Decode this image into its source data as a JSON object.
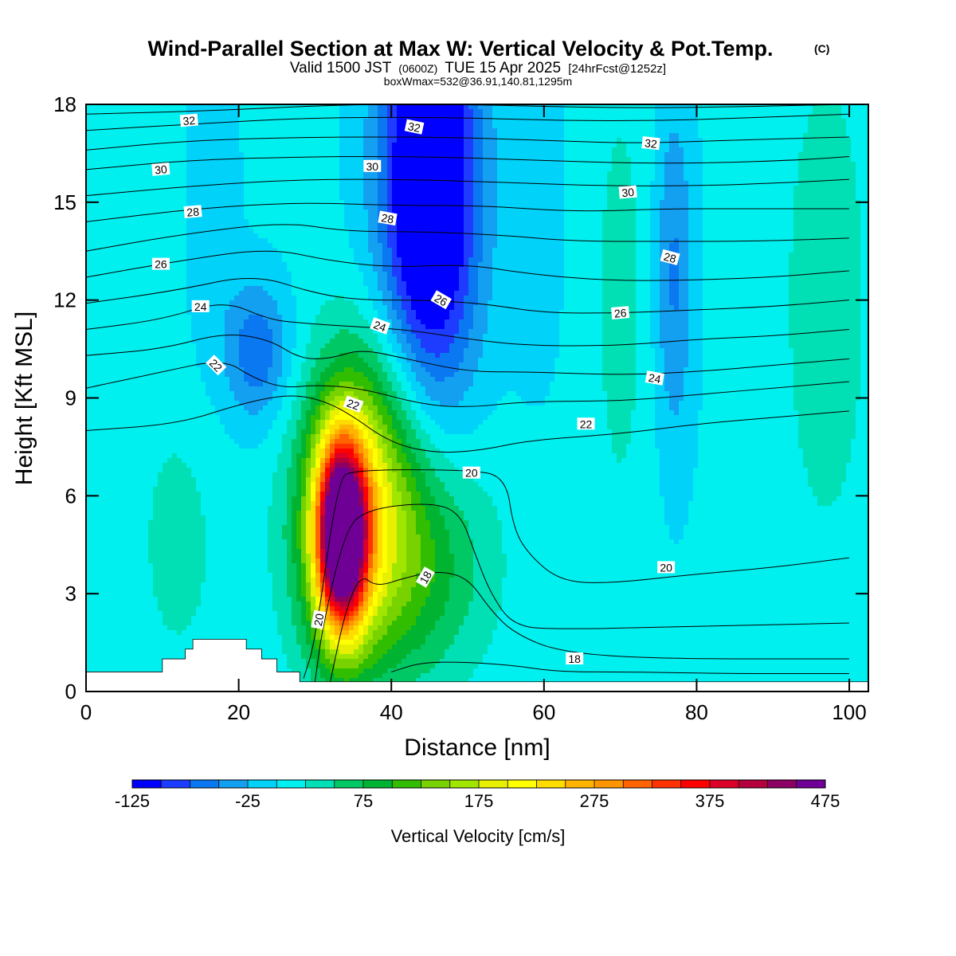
{
  "title": {
    "main": "Wind-Parallel Section at Max W: Vertical Velocity & Pot.Temp.",
    "main_suffix": "(C)",
    "valid_prefix": "Valid 1500 JST",
    "valid_small": "(0600Z)",
    "valid_date": "TUE 15 Apr 2025",
    "valid_fcst": "[24hrFcst@1252z]",
    "line3": "boxWmax=532@36.91,140.81,1295m"
  },
  "chart_data": {
    "type": "heatmap",
    "xlabel": "Distance [nm]",
    "ylabel": "Height [Kft MSL]",
    "xlim": [
      0,
      102.5
    ],
    "ylim": [
      0,
      18
    ],
    "x_ticks": [
      0,
      20,
      40,
      60,
      80,
      100
    ],
    "y_ticks": [
      0,
      3,
      6,
      9,
      12,
      15,
      18
    ],
    "grid": false,
    "colorbar": {
      "title": "Vertical Velocity [cm/s]",
      "min": -125,
      "max": 475,
      "step": 25,
      "tick_labels": [
        -125,
        -25,
        75,
        175,
        275,
        375,
        475
      ],
      "colors": [
        "#0000ff",
        "#1e3cff",
        "#0a78f0",
        "#14a0f0",
        "#00d2fa",
        "#00f0f0",
        "#00e0b4",
        "#00c864",
        "#00b432",
        "#32be00",
        "#78d200",
        "#a0e600",
        "#e6f000",
        "#ffff00",
        "#ffdc00",
        "#ffb400",
        "#ff9600",
        "#ff6400",
        "#ff3200",
        "#ff0000",
        "#dc0028",
        "#b4003c",
        "#8c0064",
        "#6e0096"
      ]
    },
    "terrain_kft": [
      [
        0,
        0.6
      ],
      [
        10,
        0.6
      ],
      [
        10,
        1.0
      ],
      [
        13,
        1.0
      ],
      [
        13,
        1.3
      ],
      [
        14,
        1.3
      ],
      [
        14,
        1.6
      ],
      [
        21,
        1.6
      ],
      [
        21,
        1.3
      ],
      [
        23,
        1.3
      ],
      [
        23,
        1.0
      ],
      [
        25,
        1.0
      ],
      [
        25,
        0.6
      ],
      [
        28,
        0.6
      ],
      [
        28,
        0.3
      ],
      [
        102.5,
        0.3
      ]
    ],
    "w_features": [
      {
        "x": 33.5,
        "z": 4.8,
        "sx": 2.2,
        "sz": 1.9,
        "w": 470
      },
      {
        "x": 34.0,
        "z": 5.5,
        "sx": 4.5,
        "sz": 3.2,
        "w": 140
      },
      {
        "x": 41.0,
        "z": 4.0,
        "sx": 7.5,
        "sz": 2.6,
        "w": 115
      },
      {
        "x": 39.0,
        "z": 8.0,
        "sx": 5.0,
        "sz": 2.4,
        "w": 60
      },
      {
        "x": 45.0,
        "z": 15.5,
        "sx": 4.5,
        "sz": 4.8,
        "w": -185
      },
      {
        "x": 22.5,
        "z": 10.4,
        "sx": 3.0,
        "sz": 1.5,
        "w": -75
      },
      {
        "x": 77.0,
        "z": 12.8,
        "sx": 1.8,
        "sz": 3.8,
        "w": -60
      },
      {
        "x": 16.0,
        "z": 15.0,
        "sx": 2.5,
        "sz": 3.5,
        "w": -25
      },
      {
        "x": 59.0,
        "z": 15.0,
        "sx": 2.5,
        "sz": 4.0,
        "w": -20
      },
      {
        "x": 12.0,
        "z": 4.5,
        "sx": 4.0,
        "sz": 3.0,
        "w": 30
      },
      {
        "x": 97.0,
        "z": 12.0,
        "sx": 4.5,
        "sz": 6.0,
        "w": 35
      },
      {
        "x": 70.0,
        "z": 12.0,
        "sx": 3.0,
        "sz": 6.0,
        "w": 28
      },
      {
        "x": 8.0,
        "z": 15.5,
        "sx": 3.5,
        "sz": 3.5,
        "w": 20
      }
    ],
    "w_background": 5,
    "theta_contours": [
      {
        "level": 18,
        "points": [
          [
            40,
            0.6
          ],
          [
            44,
            0.9
          ],
          [
            50,
            0.9
          ],
          [
            56,
            0.8
          ],
          [
            62,
            0.6
          ],
          [
            72,
            0.6
          ],
          [
            84,
            0.55
          ],
          [
            100,
            0.55
          ]
        ]
      },
      {
        "level": 18,
        "points": [
          [
            32,
            0.3
          ],
          [
            34,
            2.5
          ],
          [
            36,
            3.6
          ],
          [
            38,
            3.2
          ],
          [
            42,
            3.5
          ],
          [
            46,
            3.7
          ],
          [
            50,
            3.5
          ],
          [
            53,
            2.5
          ],
          [
            56,
            1.8
          ],
          [
            62,
            1.2
          ],
          [
            75,
            1.0
          ],
          [
            100,
            1.0
          ]
        ]
      },
      {
        "level": 20,
        "points": [
          [
            30,
            0.3
          ],
          [
            31,
            2.0
          ],
          [
            34,
            5.0
          ],
          [
            37,
            5.6
          ],
          [
            45,
            5.8
          ],
          [
            49,
            5.5
          ],
          [
            51,
            4.2
          ],
          [
            53,
            3.0
          ],
          [
            56,
            2.0
          ],
          [
            62,
            1.9
          ],
          [
            80,
            2.0
          ],
          [
            100,
            2.1
          ]
        ]
      },
      {
        "level": 20,
        "points": [
          [
            28.5,
            0.4
          ],
          [
            30,
            1.5
          ],
          [
            33,
            6.5
          ],
          [
            35,
            6.8
          ],
          [
            50,
            6.8
          ],
          [
            55,
            6.6
          ],
          [
            56,
            5.0
          ],
          [
            58,
            4.2
          ],
          [
            62,
            3.4
          ],
          [
            68,
            3.3
          ],
          [
            80,
            3.6
          ],
          [
            90,
            3.8
          ],
          [
            100,
            4.1
          ]
        ]
      },
      {
        "level": 22,
        "points": [
          [
            0,
            8.0
          ],
          [
            12,
            8.2
          ],
          [
            20,
            8.8
          ],
          [
            26,
            9.1
          ],
          [
            30,
            9.0
          ],
          [
            34,
            8.6
          ],
          [
            40,
            7.6
          ],
          [
            46,
            7.3
          ],
          [
            52,
            7.4
          ],
          [
            58,
            7.7
          ],
          [
            70,
            7.9
          ],
          [
            80,
            8.2
          ],
          [
            90,
            8.4
          ],
          [
            100,
            8.6
          ]
        ]
      },
      {
        "level": 22,
        "points": [
          [
            0,
            9.3
          ],
          [
            10,
            9.8
          ],
          [
            18,
            10.2
          ],
          [
            22,
            9.6
          ],
          [
            26,
            9.3
          ],
          [
            30,
            9.4
          ],
          [
            36,
            9.3
          ],
          [
            44,
            8.8
          ],
          [
            50,
            8.7
          ],
          [
            58,
            8.9
          ],
          [
            70,
            8.9
          ],
          [
            80,
            9.1
          ],
          [
            90,
            9.3
          ],
          [
            100,
            9.5
          ]
        ]
      },
      {
        "level": 22,
        "points": [
          [
            0,
            10.3
          ],
          [
            10,
            10.5
          ],
          [
            18,
            11.0
          ],
          [
            24,
            10.8
          ],
          [
            28,
            10.2
          ],
          [
            32,
            10.2
          ],
          [
            36,
            10.5
          ],
          [
            42,
            10.2
          ],
          [
            50,
            9.8
          ],
          [
            58,
            9.8
          ],
          [
            70,
            9.7
          ],
          [
            80,
            9.8
          ],
          [
            90,
            10.0
          ],
          [
            100,
            10.2
          ]
        ]
      },
      {
        "level": 24,
        "points": [
          [
            0,
            11.1
          ],
          [
            10,
            11.4
          ],
          [
            18,
            12.0
          ],
          [
            24,
            11.4
          ],
          [
            28,
            11.3
          ],
          [
            34,
            11.2
          ],
          [
            42,
            11.1
          ],
          [
            50,
            10.8
          ],
          [
            58,
            10.6
          ],
          [
            70,
            10.6
          ],
          [
            80,
            10.8
          ],
          [
            90,
            10.9
          ],
          [
            100,
            11.1
          ]
        ]
      },
      {
        "level": 24,
        "points": [
          [
            0,
            11.9
          ],
          [
            12,
            12.3
          ],
          [
            22,
            12.8
          ],
          [
            30,
            12.2
          ],
          [
            36,
            12.0
          ],
          [
            44,
            12.0
          ],
          [
            52,
            11.9
          ],
          [
            60,
            11.6
          ],
          [
            70,
            11.6
          ],
          [
            80,
            11.7
          ],
          [
            90,
            11.8
          ],
          [
            100,
            12.0
          ]
        ]
      },
      {
        "level": 26,
        "points": [
          [
            0,
            12.7
          ],
          [
            12,
            13.2
          ],
          [
            24,
            13.6
          ],
          [
            32,
            13.2
          ],
          [
            40,
            13.0
          ],
          [
            50,
            13.1
          ],
          [
            58,
            12.8
          ],
          [
            68,
            12.6
          ],
          [
            78,
            12.6
          ],
          [
            90,
            12.7
          ],
          [
            100,
            12.9
          ]
        ]
      },
      {
        "level": 26,
        "points": [
          [
            0,
            13.5
          ],
          [
            12,
            14.0
          ],
          [
            26,
            14.4
          ],
          [
            34,
            14.1
          ],
          [
            44,
            14.1
          ],
          [
            54,
            14.0
          ],
          [
            64,
            13.8
          ],
          [
            76,
            13.8
          ],
          [
            88,
            13.8
          ],
          [
            100,
            13.9
          ]
        ]
      },
      {
        "level": 28,
        "points": [
          [
            0,
            14.4
          ],
          [
            14,
            14.8
          ],
          [
            28,
            15.0
          ],
          [
            40,
            14.9
          ],
          [
            52,
            14.9
          ],
          [
            64,
            14.7
          ],
          [
            76,
            14.8
          ],
          [
            88,
            14.8
          ],
          [
            100,
            14.8
          ]
        ]
      },
      {
        "level": 28,
        "points": [
          [
            0,
            15.2
          ],
          [
            14,
            15.5
          ],
          [
            28,
            15.7
          ],
          [
            42,
            15.7
          ],
          [
            56,
            15.6
          ],
          [
            68,
            15.5
          ],
          [
            80,
            15.5
          ],
          [
            92,
            15.6
          ],
          [
            100,
            15.7
          ]
        ]
      },
      {
        "level": 30,
        "points": [
          [
            0,
            16.0
          ],
          [
            14,
            16.3
          ],
          [
            30,
            16.4
          ],
          [
            44,
            16.4
          ],
          [
            58,
            16.3
          ],
          [
            70,
            16.2
          ],
          [
            82,
            16.2
          ],
          [
            94,
            16.3
          ],
          [
            100,
            16.4
          ]
        ]
      },
      {
        "level": 30,
        "points": [
          [
            0,
            16.6
          ],
          [
            14,
            16.9
          ],
          [
            30,
            17.0
          ],
          [
            46,
            17.0
          ],
          [
            60,
            16.9
          ],
          [
            72,
            16.8
          ],
          [
            84,
            16.9
          ],
          [
            100,
            17.0
          ]
        ]
      },
      {
        "level": 32,
        "points": [
          [
            0,
            17.2
          ],
          [
            14,
            17.4
          ],
          [
            30,
            17.6
          ],
          [
            48,
            17.6
          ],
          [
            62,
            17.5
          ],
          [
            76,
            17.5
          ],
          [
            88,
            17.6
          ],
          [
            100,
            17.7
          ]
        ]
      },
      {
        "level": 32,
        "points": [
          [
            0,
            17.7
          ],
          [
            16,
            17.8
          ],
          [
            34,
            18.0
          ],
          [
            50,
            18.0
          ],
          [
            66,
            17.9
          ],
          [
            80,
            17.9
          ],
          [
            100,
            18.0
          ]
        ]
      }
    ],
    "contour_labels": [
      {
        "text": "32",
        "x": 13.5,
        "z": 17.5,
        "rot": -5
      },
      {
        "text": "32",
        "x": 43.0,
        "z": 17.3,
        "rot": 12
      },
      {
        "text": "32",
        "x": 74.0,
        "z": 16.8,
        "rot": 6
      },
      {
        "text": "30",
        "x": 9.8,
        "z": 16.0,
        "rot": -5
      },
      {
        "text": "30",
        "x": 37.5,
        "z": 16.1,
        "rot": 0
      },
      {
        "text": "30",
        "x": 71.0,
        "z": 15.3,
        "rot": -5
      },
      {
        "text": "28",
        "x": 14.0,
        "z": 14.7,
        "rot": -5
      },
      {
        "text": "28",
        "x": 39.5,
        "z": 14.5,
        "rot": 10
      },
      {
        "text": "28",
        "x": 76.5,
        "z": 13.3,
        "rot": 15
      },
      {
        "text": "26",
        "x": 9.8,
        "z": 13.1,
        "rot": 0
      },
      {
        "text": "26",
        "x": 46.5,
        "z": 12.0,
        "rot": 30
      },
      {
        "text": "26",
        "x": 70.0,
        "z": 11.6,
        "rot": -5
      },
      {
        "text": "24",
        "x": 15.0,
        "z": 11.8,
        "rot": 0
      },
      {
        "text": "24",
        "x": 38.5,
        "z": 11.2,
        "rot": 20
      },
      {
        "text": "24",
        "x": 74.5,
        "z": 9.6,
        "rot": 10
      },
      {
        "text": "22",
        "x": 17.0,
        "z": 10.0,
        "rot": 45
      },
      {
        "text": "22",
        "x": 35.0,
        "z": 8.8,
        "rot": 20
      },
      {
        "text": "22",
        "x": 65.5,
        "z": 8.2,
        "rot": 0
      },
      {
        "text": "20",
        "x": 50.5,
        "z": 6.7,
        "rot": 0
      },
      {
        "text": "20",
        "x": 76.0,
        "z": 3.8,
        "rot": 0
      },
      {
        "text": "20",
        "x": 30.5,
        "z": 2.2,
        "rot": -80
      },
      {
        "text": "18",
        "x": 44.5,
        "z": 3.5,
        "rot": -60
      },
      {
        "text": "18",
        "x": 64.0,
        "z": 1.0,
        "rot": 0
      }
    ]
  }
}
